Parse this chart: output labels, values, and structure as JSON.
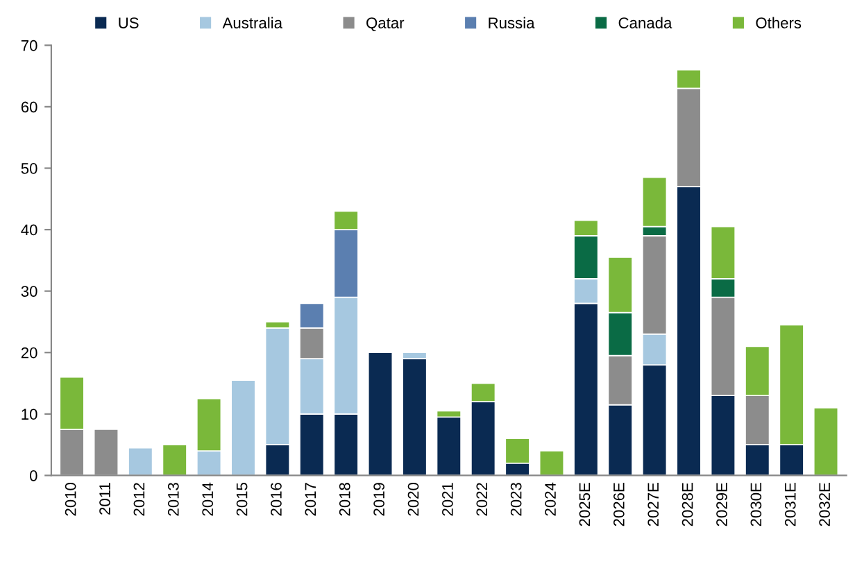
{
  "chart_data": {
    "type": "bar",
    "stacked": true,
    "categories": [
      "2010",
      "2011",
      "2012",
      "2013",
      "2014",
      "2015",
      "2016",
      "2017",
      "2018",
      "2019",
      "2020",
      "2021",
      "2022",
      "2023",
      "2024",
      "2025E",
      "2026E",
      "2027E",
      "2028E",
      "2029E",
      "2030E",
      "2031E",
      "2032E"
    ],
    "series": [
      {
        "name": "US",
        "color": "#0a2a52",
        "values": [
          0,
          0,
          0,
          0,
          0,
          0,
          5,
          10,
          10,
          20,
          19,
          9.5,
          12,
          2,
          0,
          28,
          11.5,
          18,
          47,
          13,
          5,
          5,
          0
        ]
      },
      {
        "name": "Australia",
        "color": "#a6c8e0",
        "values": [
          0,
          0,
          4.5,
          0,
          4,
          15.5,
          19,
          9,
          19,
          0,
          1,
          0,
          0,
          0,
          0,
          4,
          0,
          5,
          0,
          0,
          0,
          0,
          0
        ]
      },
      {
        "name": "Qatar",
        "color": "#8c8c8c",
        "values": [
          7.5,
          7.5,
          0,
          0,
          0,
          0,
          0,
          5,
          0,
          0,
          0,
          0,
          0,
          0,
          0,
          0,
          8,
          16,
          16,
          16,
          8,
          0,
          0
        ]
      },
      {
        "name": "Russia",
        "color": "#5b7fb0",
        "values": [
          0,
          0,
          0,
          0,
          0,
          0,
          0,
          4,
          11,
          0,
          0,
          0,
          0,
          0,
          0,
          0,
          0,
          0,
          0,
          0,
          0,
          0,
          0
        ]
      },
      {
        "name": "Canada",
        "color": "#0a6b45",
        "values": [
          0,
          0,
          0,
          0,
          0,
          0,
          0,
          0,
          0,
          0,
          0,
          0,
          0,
          0,
          0,
          7,
          7,
          1.5,
          0,
          3,
          0,
          0,
          0
        ]
      },
      {
        "name": "Others",
        "color": "#7ab83a",
        "values": [
          8.5,
          0,
          0,
          5,
          8.5,
          0,
          1,
          0,
          3,
          0,
          0,
          1,
          3,
          4,
          4,
          2.5,
          9,
          8,
          3,
          8.5,
          8,
          19.5,
          11
        ]
      }
    ],
    "ylim": [
      0,
      70
    ],
    "yticks": [
      0,
      10,
      20,
      30,
      40,
      50,
      60,
      70
    ],
    "grid": false,
    "legend": "top"
  }
}
